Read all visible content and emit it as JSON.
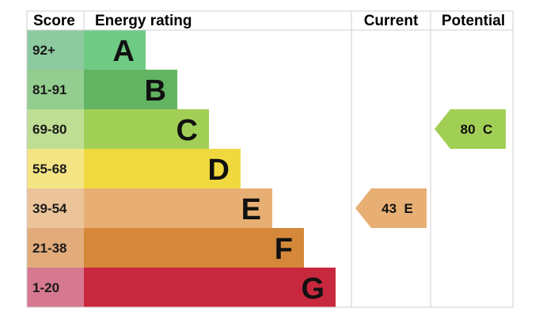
{
  "chart_data": {
    "type": "bar",
    "headers": {
      "score": "Score",
      "rating": "Energy rating",
      "current": "Current",
      "potential": "Potential"
    },
    "bands": [
      {
        "score": "92+",
        "letter": "A",
        "color": "#6fcb84",
        "score_bg": "#8dcaa0"
      },
      {
        "score": "81-91",
        "letter": "B",
        "color": "#63b462",
        "score_bg": "#93cd8f"
      },
      {
        "score": "69-80",
        "letter": "C",
        "color": "#a1cf55",
        "score_bg": "#bedf93"
      },
      {
        "score": "55-68",
        "letter": "D",
        "color": "#f0d93e",
        "score_bg": "#f4e584"
      },
      {
        "score": "39-54",
        "letter": "E",
        "color": "#e7af73",
        "score_bg": "#ecc49a"
      },
      {
        "score": "21-38",
        "letter": "F",
        "color": "#d5883a",
        "score_bg": "#e1ab7a"
      },
      {
        "score": "1-20",
        "letter": "G",
        "color": "#c8283e",
        "score_bg": "#d57890"
      }
    ],
    "current": {
      "value": 43,
      "letter": "E",
      "label": "43  E",
      "color": "#e7af73"
    },
    "potential": {
      "value": 80,
      "letter": "C",
      "label": "80  C",
      "color": "#a1cf55"
    }
  }
}
